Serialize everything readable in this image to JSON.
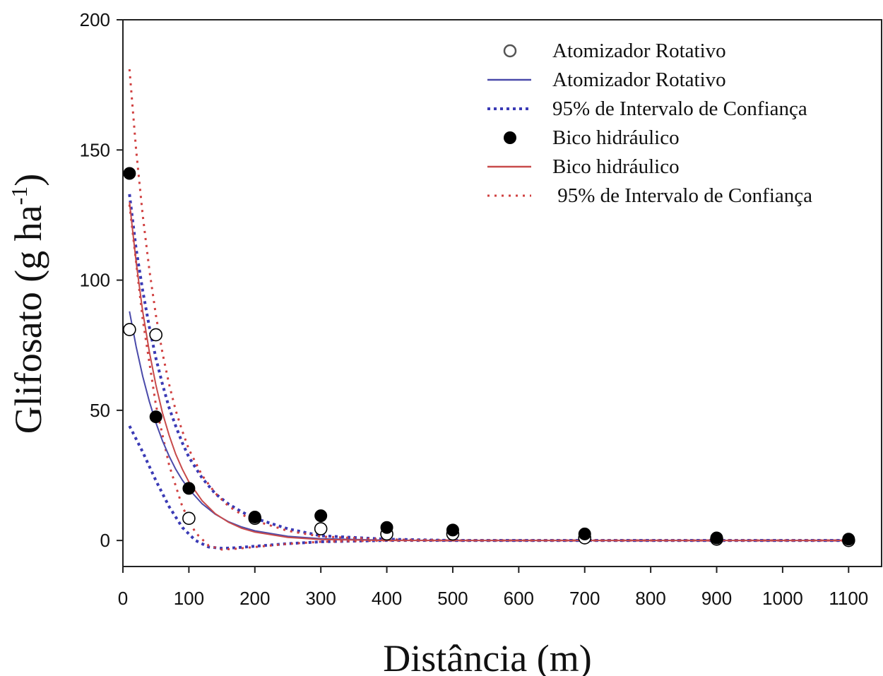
{
  "chart_data": {
    "type": "scatter",
    "xlabel": "Distância (m)",
    "ylabel": {
      "main": "Glifosato (g ha",
      "sup": "-1",
      "close": ")"
    },
    "xlim": [
      0,
      1150
    ],
    "ylim": [
      -10,
      200
    ],
    "x_ticks": [
      "0",
      "100",
      "200",
      "300",
      "400",
      "500",
      "600",
      "700",
      "800",
      "900",
      "1000",
      "1100"
    ],
    "y_ticks": [
      "0",
      "50",
      "100",
      "150",
      "200"
    ],
    "grid": false,
    "legend_position": "top-right",
    "series": [
      {
        "name": "Atomizador Rotativo",
        "kind": "points",
        "marker": "open-circle",
        "color": "#000000",
        "x": [
          10,
          50,
          100,
          200,
          300,
          400,
          500,
          700,
          900,
          1100
        ],
        "y": [
          81,
          79,
          8.5,
          8.5,
          4.5,
          2.5,
          2.5,
          1,
          0.5,
          0
        ]
      },
      {
        "name": "Atomizador Rotativo",
        "kind": "fit",
        "color": "#4a4aaa",
        "dash": "solid",
        "x": [
          10,
          20,
          30,
          40,
          50,
          60,
          70,
          80,
          90,
          100,
          120,
          140,
          160,
          180,
          200,
          250,
          300,
          400,
          500,
          600,
          700,
          800,
          900,
          1000,
          1100
        ],
        "y": [
          88,
          74.5,
          63.1,
          53.4,
          45.2,
          38.3,
          32.4,
          27.4,
          23.2,
          19.7,
          14.1,
          10.1,
          7.2,
          5.2,
          3.7,
          1.6,
          0.7,
          0.1,
          0,
          0,
          0,
          0,
          0,
          0,
          0
        ]
      },
      {
        "name": "95% de Intervalo de Confiança",
        "kind": "ci",
        "color": "#3a3ab5",
        "dash": "dense",
        "lower": {
          "x": [
            10,
            30,
            50,
            70,
            90,
            110,
            130,
            150,
            170,
            200,
            250,
            300,
            400,
            1100
          ],
          "y": [
            44,
            34,
            23,
            13,
            5,
            0,
            -2.5,
            -3,
            -2.8,
            -2.2,
            -1.2,
            -0.5,
            0,
            0
          ]
        },
        "upper": {
          "x": [
            10,
            20,
            30,
            40,
            50,
            60,
            70,
            80,
            90,
            100,
            120,
            140,
            160,
            180,
            200,
            250,
            300,
            400,
            500,
            1100
          ],
          "y": [
            133,
            112,
            96,
            82,
            70,
            60,
            51,
            44,
            37.5,
            32,
            24,
            18,
            14,
            11,
            8.5,
            4.5,
            1.8,
            0.5,
            0,
            0
          ]
        }
      },
      {
        "name": "Bico hidráulico",
        "kind": "points",
        "marker": "filled-circle",
        "color": "#000000",
        "x": [
          10,
          50,
          100,
          200,
          300,
          400,
          500,
          700,
          900,
          1100
        ],
        "y": [
          141,
          47.5,
          20,
          9,
          9.5,
          5,
          4,
          2.5,
          1,
          0.5
        ]
      },
      {
        "name": "Bico hidráulico",
        "kind": "fit",
        "color": "#c84a4a",
        "dash": "solid",
        "x": [
          10,
          20,
          30,
          40,
          50,
          60,
          70,
          80,
          90,
          100,
          120,
          140,
          160,
          180,
          200,
          250,
          300,
          400,
          500,
          600,
          700,
          800,
          900,
          1000,
          1100
        ],
        "y": [
          130,
          107,
          88,
          72.5,
          59.7,
          49,
          40.4,
          33.2,
          27.4,
          22.5,
          15.3,
          10.3,
          7,
          4.7,
          3.2,
          1.2,
          0.4,
          0,
          0,
          0,
          0,
          0,
          0,
          0,
          0
        ]
      },
      {
        "name": " 95% de Intervalo de Confiança",
        "kind": "ci",
        "color": "#d04040",
        "dash": "sparse",
        "lower": {
          "x": [
            10,
            30,
            50,
            70,
            90,
            110,
            130,
            150,
            170,
            200,
            250,
            300,
            400,
            1100
          ],
          "y": [
            129,
            85,
            52,
            29,
            13,
            3,
            -2,
            -3.5,
            -3.2,
            -2.5,
            -1.3,
            -0.5,
            0,
            0
          ]
        },
        "upper": {
          "x": [
            10,
            20,
            30,
            40,
            50,
            60,
            70,
            80,
            90,
            100,
            120,
            140,
            160,
            180,
            200,
            250,
            300,
            400,
            500,
            1100
          ],
          "y": [
            181,
            150,
            125,
            104,
            86.5,
            72,
            60,
            50,
            42,
            35,
            25,
            18.2,
            13.2,
            10,
            7.6,
            3.7,
            1.5,
            0.4,
            0,
            0
          ]
        }
      }
    ],
    "legend": [
      {
        "label": "Atomizador Rotativo",
        "swatch": "open-circle",
        "color": "#555555"
      },
      {
        "label": "Atomizador Rotativo",
        "swatch": "line-solid",
        "color": "#4a4aaa"
      },
      {
        "label": "95% de Intervalo de Confiança",
        "swatch": "line-dense",
        "color": "#3a3ab5"
      },
      {
        "label": "Bico hidráulico",
        "swatch": "filled-circle",
        "color": "#000000"
      },
      {
        "label": "Bico hidráulico",
        "swatch": "line-solid",
        "color": "#c84a4a"
      },
      {
        "label": " 95% de Intervalo de Confiança",
        "swatch": "line-sparse",
        "color": "#d04040"
      }
    ]
  }
}
